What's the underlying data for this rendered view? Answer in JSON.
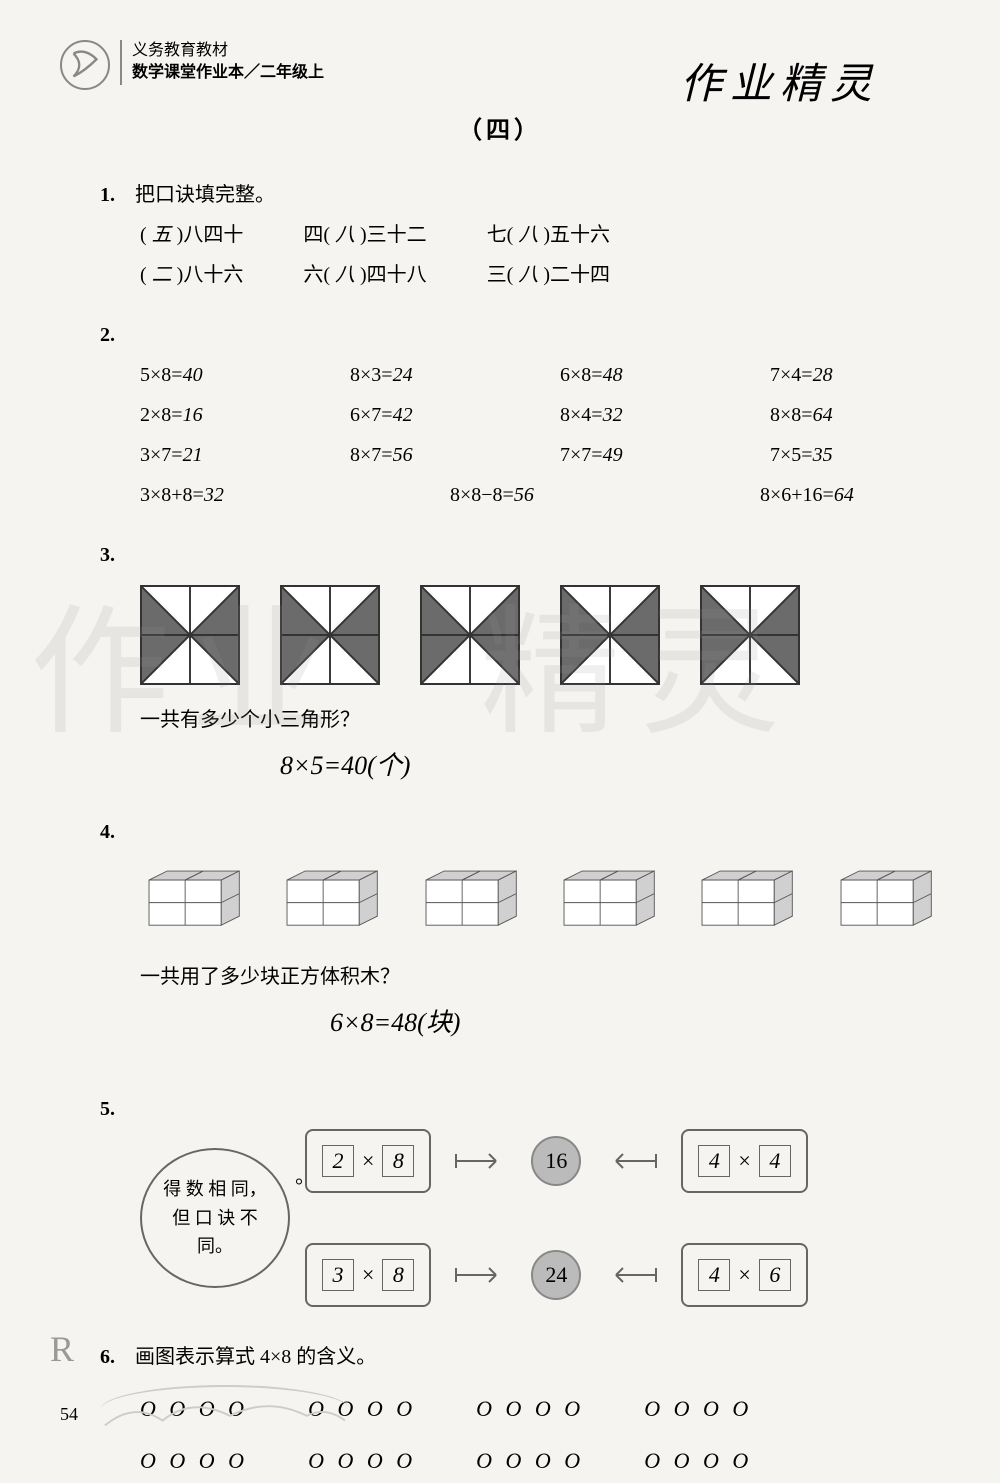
{
  "header": {
    "line1": "义务教育教材",
    "line2": "数学课堂作业本／二年级上"
  },
  "handwritten_title": "作业精灵",
  "section_title": "（四）",
  "q1": {
    "num": "1.",
    "prompt": "把口诀填完整。",
    "rows": [
      [
        {
          "blank": "五",
          "rest": "八四十"
        },
        {
          "pre": "四",
          "blank": "八",
          "rest": "三十二"
        },
        {
          "pre": "七",
          "blank": "八",
          "rest": "五十六"
        }
      ],
      [
        {
          "blank": "二",
          "rest": "八十六"
        },
        {
          "pre": "六",
          "blank": "八",
          "rest": "四十八"
        },
        {
          "pre": "三",
          "blank": "八",
          "rest": "二十四"
        }
      ]
    ]
  },
  "q2": {
    "num": "2.",
    "grid": [
      [
        {
          "eq": "5×8=",
          "ans": "40"
        },
        {
          "eq": "8×3=",
          "ans": "24"
        },
        {
          "eq": "6×8=",
          "ans": "48"
        },
        {
          "eq": "7×4=",
          "ans": "28"
        }
      ],
      [
        {
          "eq": "2×8=",
          "ans": "16"
        },
        {
          "eq": "6×7=",
          "ans": "42"
        },
        {
          "eq": "8×4=",
          "ans": "32"
        },
        {
          "eq": "8×8=",
          "ans": "64"
        }
      ],
      [
        {
          "eq": "3×7=",
          "ans": "21"
        },
        {
          "eq": "8×7=",
          "ans": "56"
        },
        {
          "eq": "7×7=",
          "ans": "49"
        },
        {
          "eq": "7×5=",
          "ans": "35"
        }
      ]
    ],
    "last_row": [
      {
        "eq": "3×8+8=",
        "ans": "32"
      },
      {
        "eq": "8×8−8=",
        "ans": "56"
      },
      {
        "eq": "8×6+16=",
        "ans": "64"
      }
    ]
  },
  "q3": {
    "num": "3.",
    "triangle_fill": "#6b6b6b",
    "triangle_stroke": "#333333",
    "count": 5,
    "question": "一共有多少个小三角形？",
    "answer": "8×5=40(个)"
  },
  "q4": {
    "num": "4.",
    "cube_stroke": "#555555",
    "cube_fill": "#d0d0d0",
    "count": 6,
    "question": "一共用了多少块正方体积木？",
    "answer": "6×8=48(块)"
  },
  "q5": {
    "num": "5.",
    "bubble_text": "得 数 相 同，但 口 诀 不 同。",
    "rows": [
      {
        "left": [
          "2",
          "8"
        ],
        "result": "16",
        "right": [
          "4",
          "4"
        ]
      },
      {
        "left": [
          "3",
          "8"
        ],
        "result": "24",
        "right": [
          "4",
          "6"
        ]
      }
    ]
  },
  "q6": {
    "num": "6.",
    "prompt": "画图表示算式 4×8 的含义。",
    "rows": 2,
    "groups_per_row": 4,
    "circles_per_group": 4,
    "circle_char": "O"
  },
  "watermark": "作业精灵",
  "page_number": "54",
  "r_mark": "R",
  "colors": {
    "background": "#f5f4f0",
    "text": "#222222",
    "border": "#666666",
    "result_circle_bg": "#bbbbbb",
    "watermark": "rgba(150,150,150,0.15)"
  }
}
